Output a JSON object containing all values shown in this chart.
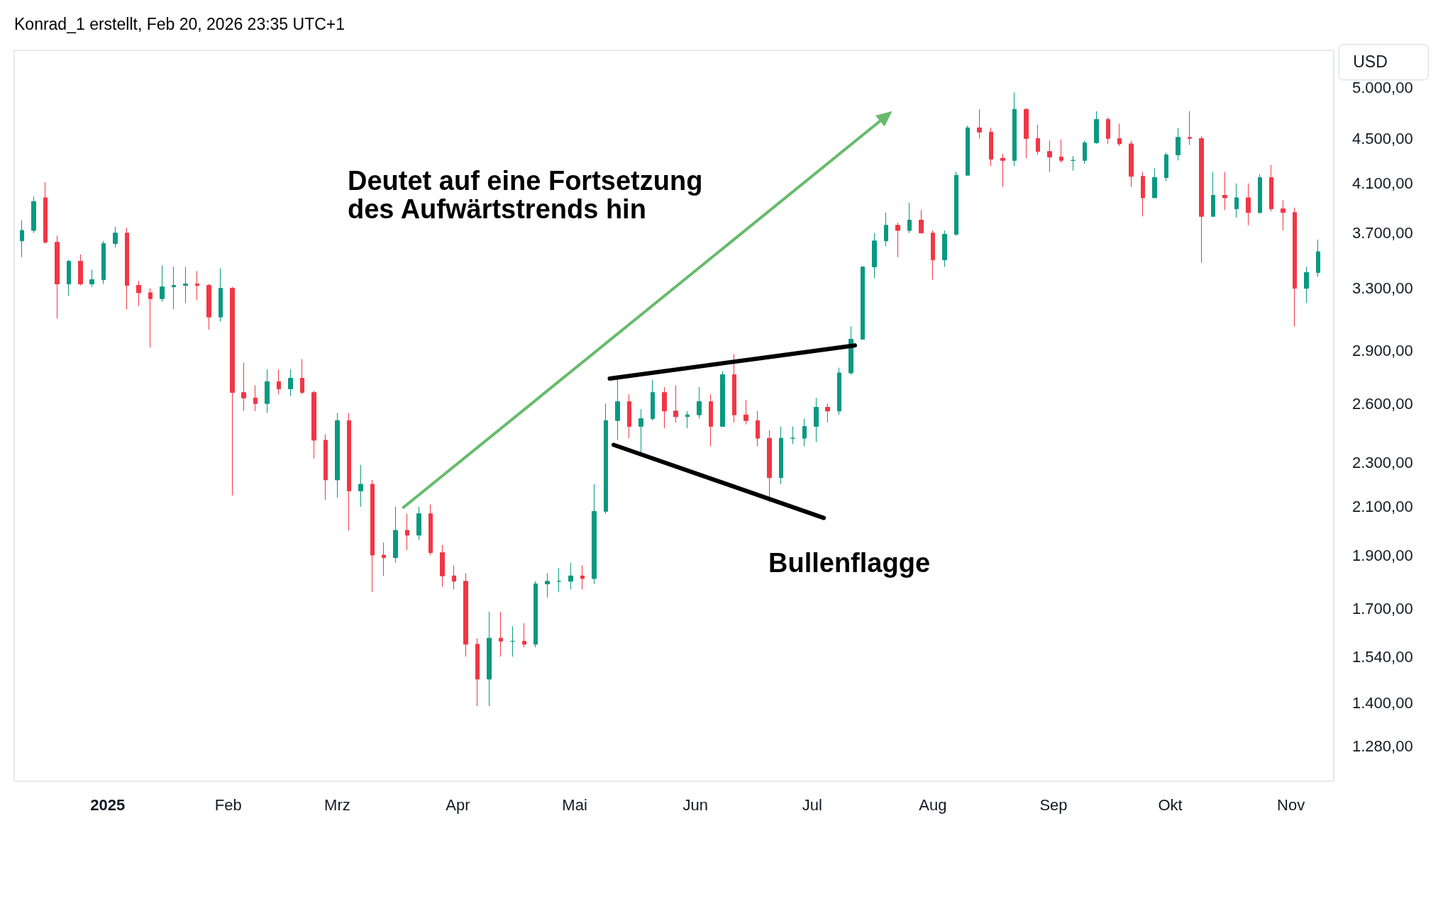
{
  "chart_data": {
    "type": "candlestick",
    "annotations": [
      "Konrad_1 erstellt, Feb 20, 2026 23:35 UTC+1",
      "Deutet auf eine Fortsetzung\ndes Aufwärtstrends hin",
      "Bullenflagge"
    ],
    "ylabel": "USD",
    "x": [
      "2024-12-10",
      "2024-12-13",
      "2024-12-16",
      "2024-12-19",
      "2024-12-22",
      "2024-12-25",
      "2024-12-28",
      "2024-12-31",
      "2025-01-03",
      "2025-01-06",
      "2025-01-09",
      "2025-01-12",
      "2025-01-15",
      "2025-01-18",
      "2025-01-21",
      "2025-01-24",
      "2025-01-27",
      "2025-01-30",
      "2025-02-02",
      "2025-02-05",
      "2025-02-08",
      "2025-02-11",
      "2025-02-14",
      "2025-02-17",
      "2025-02-20",
      "2025-02-23",
      "2025-02-26",
      "2025-03-01",
      "2025-03-04",
      "2025-03-07",
      "2025-03-10",
      "2025-03-13",
      "2025-03-16",
      "2025-03-19",
      "2025-03-22",
      "2025-03-25",
      "2025-03-28",
      "2025-03-31",
      "2025-04-03",
      "2025-04-06",
      "2025-04-09",
      "2025-04-12",
      "2025-04-15",
      "2025-04-18",
      "2025-04-21",
      "2025-04-24",
      "2025-04-27",
      "2025-04-30",
      "2025-05-03",
      "2025-05-06",
      "2025-05-09",
      "2025-05-12",
      "2025-05-15",
      "2025-05-18",
      "2025-05-21",
      "2025-05-24",
      "2025-05-27",
      "2025-05-30",
      "2025-06-02",
      "2025-06-05",
      "2025-06-08",
      "2025-06-11",
      "2025-06-14",
      "2025-06-17",
      "2025-06-20",
      "2025-06-23",
      "2025-06-26",
      "2025-06-29",
      "2025-07-02",
      "2025-07-05",
      "2025-07-08",
      "2025-07-11",
      "2025-07-14",
      "2025-07-17",
      "2025-07-20",
      "2025-07-23",
      "2025-07-26",
      "2025-07-29",
      "2025-08-01",
      "2025-08-04",
      "2025-08-07",
      "2025-08-10",
      "2025-08-13",
      "2025-08-16",
      "2025-08-19",
      "2025-08-22",
      "2025-08-25",
      "2025-08-28",
      "2025-08-31",
      "2025-09-03",
      "2025-09-06",
      "2025-09-09",
      "2025-09-12",
      "2025-09-15",
      "2025-09-18",
      "2025-09-21",
      "2025-09-24",
      "2025-09-27",
      "2025-09-30",
      "2025-10-03",
      "2025-10-06",
      "2025-10-09",
      "2025-10-12",
      "2025-10-15",
      "2025-10-18",
      "2025-10-21",
      "2025-10-24",
      "2025-10-27",
      "2025-10-30",
      "2025-11-02",
      "2025-11-05",
      "2025-11-08"
    ],
    "ohlc": [
      [
        3640,
        3800,
        3520,
        3720
      ],
      [
        3720,
        3990,
        3700,
        3950
      ],
      [
        3980,
        4110,
        3620,
        3630
      ],
      [
        3630,
        3680,
        3100,
        3330
      ],
      [
        3330,
        3500,
        3250,
        3490
      ],
      [
        3490,
        3540,
        3320,
        3330
      ],
      [
        3330,
        3430,
        3310,
        3360
      ],
      [
        3360,
        3640,
        3330,
        3620
      ],
      [
        3620,
        3750,
        3590,
        3700
      ],
      [
        3700,
        3740,
        3160,
        3320
      ],
      [
        3320,
        3350,
        3180,
        3270
      ],
      [
        3270,
        3300,
        2920,
        3230
      ],
      [
        3230,
        3460,
        3210,
        3310
      ],
      [
        3310,
        3450,
        3160,
        3320
      ],
      [
        3320,
        3450,
        3200,
        3330
      ],
      [
        3330,
        3420,
        3220,
        3320
      ],
      [
        3320,
        3330,
        3030,
        3110
      ],
      [
        3110,
        3440,
        3080,
        3300
      ],
      [
        3300,
        3310,
        2150,
        2660
      ],
      [
        2660,
        2830,
        2560,
        2630
      ],
      [
        2630,
        2700,
        2560,
        2600
      ],
      [
        2600,
        2790,
        2550,
        2720
      ],
      [
        2720,
        2790,
        2650,
        2680
      ],
      [
        2680,
        2790,
        2640,
        2740
      ],
      [
        2740,
        2850,
        2650,
        2660
      ],
      [
        2660,
        2670,
        2320,
        2410
      ],
      [
        2410,
        2440,
        2130,
        2220
      ],
      [
        2220,
        2550,
        2140,
        2510
      ],
      [
        2510,
        2550,
        2000,
        2170
      ],
      [
        2170,
        2290,
        2100,
        2200
      ],
      [
        2200,
        2220,
        1760,
        1900
      ],
      [
        1900,
        1950,
        1820,
        1890
      ],
      [
        1890,
        2100,
        1870,
        2000
      ],
      [
        2000,
        2070,
        1920,
        1980
      ],
      [
        1980,
        2100,
        1960,
        2070
      ],
      [
        2070,
        2110,
        1900,
        1910
      ],
      [
        1910,
        1940,
        1780,
        1820
      ],
      [
        1820,
        1860,
        1770,
        1800
      ],
      [
        1800,
        1830,
        1540,
        1580
      ],
      [
        1580,
        1600,
        1390,
        1470
      ],
      [
        1470,
        1690,
        1390,
        1600
      ],
      [
        1600,
        1690,
        1540,
        1590
      ],
      [
        1590,
        1640,
        1540,
        1590
      ],
      [
        1590,
        1650,
        1570,
        1580
      ],
      [
        1580,
        1800,
        1570,
        1790
      ],
      [
        1790,
        1830,
        1740,
        1800
      ],
      [
        1800,
        1850,
        1760,
        1800
      ],
      [
        1800,
        1870,
        1770,
        1820
      ],
      [
        1820,
        1860,
        1770,
        1810
      ],
      [
        1810,
        2200,
        1790,
        2080
      ],
      [
        2080,
        2600,
        2070,
        2510
      ],
      [
        2510,
        2740,
        2410,
        2610
      ],
      [
        2610,
        2650,
        2420,
        2480
      ],
      [
        2480,
        2570,
        2340,
        2520
      ],
      [
        2520,
        2730,
        2510,
        2660
      ],
      [
        2660,
        2690,
        2470,
        2560
      ],
      [
        2560,
        2700,
        2500,
        2530
      ],
      [
        2530,
        2560,
        2470,
        2540
      ],
      [
        2540,
        2690,
        2520,
        2610
      ],
      [
        2610,
        2650,
        2380,
        2480
      ],
      [
        2480,
        2780,
        2480,
        2760
      ],
      [
        2760,
        2880,
        2500,
        2540
      ],
      [
        2540,
        2620,
        2490,
        2510
      ],
      [
        2510,
        2560,
        2380,
        2420
      ],
      [
        2420,
        2460,
        2120,
        2230
      ],
      [
        2230,
        2480,
        2200,
        2420
      ],
      [
        2420,
        2480,
        2390,
        2420
      ],
      [
        2420,
        2520,
        2380,
        2480
      ],
      [
        2480,
        2630,
        2400,
        2580
      ],
      [
        2580,
        2600,
        2500,
        2560
      ],
      [
        2560,
        2800,
        2540,
        2770
      ],
      [
        2770,
        3050,
        2760,
        2970
      ],
      [
        2970,
        3450,
        2970,
        3450
      ],
      [
        3450,
        3700,
        3370,
        3640
      ],
      [
        3640,
        3860,
        3600,
        3760
      ],
      [
        3760,
        3780,
        3520,
        3720
      ],
      [
        3720,
        3940,
        3700,
        3800
      ],
      [
        3800,
        3880,
        3700,
        3700
      ],
      [
        3700,
        3720,
        3360,
        3500
      ],
      [
        3500,
        3720,
        3450,
        3690
      ],
      [
        3690,
        4200,
        3680,
        4170
      ],
      [
        4170,
        4620,
        4170,
        4600
      ],
      [
        4600,
        4780,
        4500,
        4560
      ],
      [
        4560,
        4600,
        4250,
        4310
      ],
      [
        4320,
        4360,
        4070,
        4300
      ],
      [
        4300,
        4950,
        4250,
        4780
      ],
      [
        4780,
        4790,
        4320,
        4500
      ],
      [
        4500,
        4630,
        4350,
        4380
      ],
      [
        4380,
        4480,
        4200,
        4330
      ],
      [
        4330,
        4490,
        4280,
        4300
      ],
      [
        4300,
        4340,
        4210,
        4300
      ],
      [
        4300,
        4480,
        4270,
        4460
      ],
      [
        4460,
        4760,
        4450,
        4680
      ],
      [
        4680,
        4700,
        4450,
        4500
      ],
      [
        4500,
        4640,
        4430,
        4450
      ],
      [
        4450,
        4480,
        4070,
        4160
      ],
      [
        4160,
        4200,
        3830,
        3980
      ],
      [
        3980,
        4230,
        3980,
        4150
      ],
      [
        4150,
        4370,
        4120,
        4350
      ],
      [
        4350,
        4600,
        4300,
        4510
      ],
      [
        4510,
        4760,
        4440,
        4500
      ],
      [
        4500,
        4520,
        3480,
        3830
      ],
      [
        3830,
        4200,
        3830,
        4000
      ],
      [
        4000,
        4200,
        3880,
        3980
      ],
      [
        3890,
        4100,
        3820,
        3980
      ],
      [
        3980,
        4100,
        3760,
        3860
      ],
      [
        3860,
        4180,
        3850,
        4150
      ],
      [
        4150,
        4260,
        3870,
        3890
      ],
      [
        3890,
        3960,
        3720,
        3860
      ],
      [
        3860,
        3900,
        3050,
        3300
      ],
      [
        3300,
        3450,
        3200,
        3410
      ],
      [
        3410,
        3650,
        3380,
        3560
      ]
    ],
    "series": [
      {
        "type": "line",
        "color": "#66bb6a",
        "marker": "triangle",
        "x": [
          "2025-03-18",
          "2025-07-20"
        ],
        "values": [
          2097,
          4713
        ]
      },
      {
        "type": "line",
        "color": "#000000",
        "x": [
          "2025-05-10",
          "2025-07-12"
        ],
        "values": [
          2738,
          2932
        ]
      },
      {
        "type": "line",
        "color": "#000000",
        "x": [
          "2025-05-11",
          "2025-07-04"
        ],
        "values": [
          2387,
          2052
        ]
      }
    ],
    "log": "y",
    "xlim": [
      "2024-12-08",
      "2025-11-12"
    ],
    "xticks": [
      {
        "value": "2025-01-01",
        "label": "2025"
      },
      {
        "value": "2025-02-01",
        "label": "Feb"
      },
      {
        "value": "2025-03-01",
        "label": "Mrz"
      },
      {
        "value": "2025-04-01",
        "label": "Apr"
      },
      {
        "value": "2025-05-01",
        "label": "Mai"
      },
      {
        "value": "2025-06-01",
        "label": "Jun"
      },
      {
        "value": "2025-07-01",
        "label": "Jul"
      },
      {
        "value": "2025-08-01",
        "label": "Aug"
      },
      {
        "value": "2025-09-01",
        "label": "Sep"
      },
      {
        "value": "2025-10-01",
        "label": "Okt"
      },
      {
        "value": "2025-11-01",
        "label": "Nov"
      }
    ],
    "ylim": [
      1190,
      5400
    ],
    "yticks": [
      {
        "value": 1280,
        "label": "1.280,00"
      },
      {
        "value": 1400,
        "label": "1.400,00"
      },
      {
        "value": 1540,
        "label": "1.540,00"
      },
      {
        "value": 1700,
        "label": "1.700,00"
      },
      {
        "value": 1900,
        "label": "1.900,00"
      },
      {
        "value": 2100,
        "label": "2.100,00"
      },
      {
        "value": 2300,
        "label": "2.300,00"
      },
      {
        "value": 2600,
        "label": "2.600,00"
      },
      {
        "value": 2900,
        "label": "2.900,00"
      },
      {
        "value": 3300,
        "label": "3.300,00"
      },
      {
        "value": 3700,
        "label": "3.700,00"
      },
      {
        "value": 4100,
        "label": "4.100,00"
      },
      {
        "value": 4500,
        "label": "4.500,00"
      },
      {
        "value": 5000,
        "label": "5.000,00"
      }
    ],
    "grid": false
  }
}
